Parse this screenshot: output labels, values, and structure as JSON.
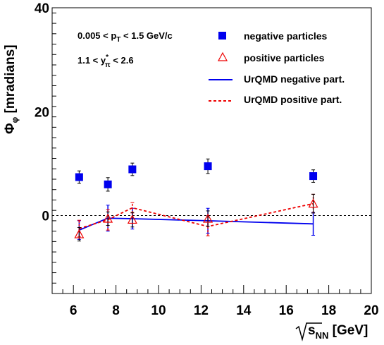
{
  "chart_data": {
    "type": "scatter",
    "xlabel": "√sNN [GeV]",
    "xlabel_main": "s",
    "xlabel_sub": "NN",
    "xlabel_unit": " [GeV]",
    "ylabel": "Φφ [mradians]",
    "ylabel_main": "Φ",
    "ylabel_sub": "φ",
    "ylabel_unit": "[mradians]",
    "xlim": [
      5,
      20
    ],
    "ylim": [
      -15,
      40
    ],
    "x_ticks": [
      "6",
      "8",
      "10",
      "12",
      "14",
      "16",
      "18",
      "20"
    ],
    "y_ticks": [
      "0",
      "20",
      "40"
    ],
    "cuts": {
      "line1": {
        "a": "0.005 < p",
        "sub": "T",
        "b": " < 1.5 GeV/c"
      },
      "line2": {
        "a": "1.1 < y",
        "sup": "*",
        "sub": "π",
        "b": " < 2.6"
      }
    },
    "reference_line": 0,
    "series": [
      {
        "name": "negative particles",
        "style": "marker-square",
        "color": "#0000ee",
        "x": [
          6.27,
          7.62,
          8.77,
          12.32,
          17.27
        ],
        "y": [
          7.4,
          6.0,
          8.9,
          9.5,
          7.6
        ],
        "err": [
          1.2,
          1.3,
          1.2,
          1.4,
          1.2
        ]
      },
      {
        "name": "positive particles",
        "style": "marker-triangle-open",
        "color": "#ee0000",
        "x": [
          6.27,
          7.62,
          8.77,
          12.32,
          17.27
        ],
        "y": [
          -3.6,
          -0.6,
          -0.8,
          -0.6,
          2.3
        ],
        "err": [
          1.3,
          1.3,
          1.4,
          1.5,
          1.8
        ]
      },
      {
        "name": "UrQMD negative part.",
        "style": "line-solid",
        "color": "#0000ee",
        "x": [
          6.27,
          7.62,
          8.77,
          12.32,
          17.27
        ],
        "y": [
          -2.8,
          -0.5,
          -0.6,
          -1.0,
          -1.6
        ],
        "err": [
          1.8,
          2.5,
          2.0,
          2.4,
          2.2
        ]
      },
      {
        "name": "UrQMD positive part.",
        "style": "line-dashed",
        "color": "#ee0000",
        "x": [
          6.27,
          7.62,
          8.77,
          12.32,
          17.27
        ],
        "y": [
          -2.5,
          -0.8,
          1.5,
          -2.1,
          2.3
        ],
        "err": [
          1.6,
          2.0,
          1.0,
          1.8,
          1.8
        ]
      }
    ]
  }
}
